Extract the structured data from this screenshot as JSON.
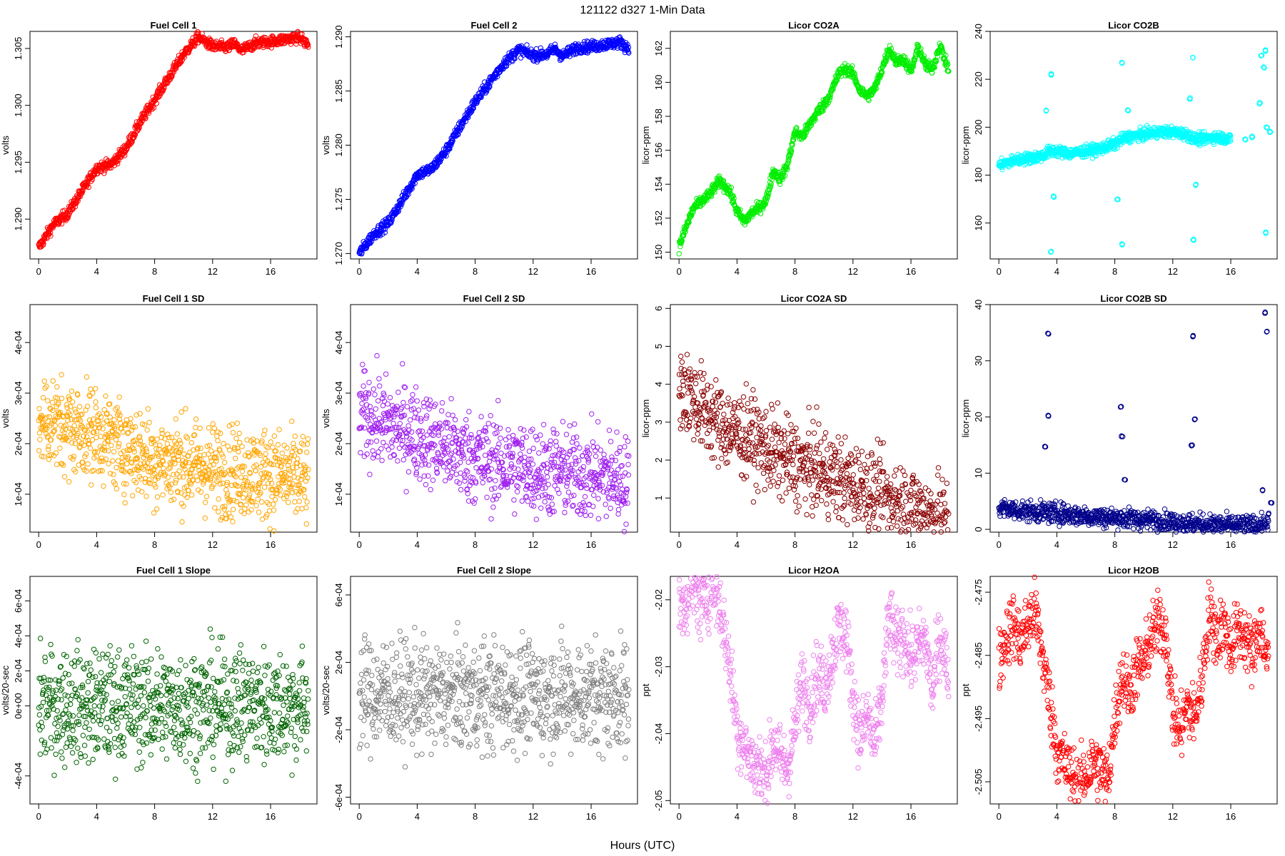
{
  "figure": {
    "title": "121122   d327   1-Min Data",
    "xlabel": "Hours (UTC)"
  },
  "chart_data": [
    {
      "type": "scatter",
      "title": "Fuel Cell 1",
      "ylabel": "volts",
      "color": "#ff0000",
      "xlim": [
        -0.6,
        19.2
      ],
      "ylim": [
        1.2865,
        1.3065
      ],
      "yticks": [
        "1.290",
        "1.295",
        "1.300",
        "1.305"
      ],
      "xticks": [
        0,
        4,
        8,
        12,
        16
      ],
      "x": [
        0,
        1,
        2,
        3,
        4,
        5,
        6,
        7,
        8,
        9,
        10,
        11,
        12,
        13,
        13.5,
        14,
        15,
        16,
        17,
        18,
        18.6
      ],
      "y": [
        1.2875,
        1.2895,
        1.2905,
        1.2925,
        1.2945,
        1.2948,
        1.2962,
        1.2985,
        1.3005,
        1.3025,
        1.3045,
        1.306,
        1.3052,
        1.3051,
        1.3054,
        1.3048,
        1.3055,
        1.3056,
        1.3058,
        1.306,
        1.3053
      ]
    },
    {
      "type": "scatter",
      "title": "Fuel Cell 2",
      "ylabel": "volts",
      "color": "#0000ff",
      "xlim": [
        -0.6,
        19.2
      ],
      "ylim": [
        1.2695,
        1.2905
      ],
      "yticks": [
        "1.270",
        "1.275",
        "1.280",
        "1.285",
        "1.290"
      ],
      "xticks": [
        0,
        4,
        8,
        12,
        16
      ],
      "x": [
        0,
        1,
        2,
        3,
        4,
        5,
        6,
        7,
        8,
        9,
        10,
        11,
        12,
        13,
        13.5,
        14,
        15,
        16,
        17,
        18,
        18.6
      ],
      "y": [
        1.27,
        1.2718,
        1.2728,
        1.275,
        1.2773,
        1.2778,
        1.2795,
        1.2818,
        1.284,
        1.2858,
        1.2876,
        1.2888,
        1.2883,
        1.2884,
        1.2889,
        1.2882,
        1.289,
        1.2891,
        1.2893,
        1.2895,
        1.2889
      ]
    },
    {
      "type": "scatter",
      "title": "Licor CO2A",
      "ylabel": "licor-ppm",
      "color": "#00ee00",
      "xlim": [
        -0.6,
        19.2
      ],
      "ylim": [
        149.6,
        163.0
      ],
      "yticks": [
        "150",
        "152",
        "154",
        "156",
        "158",
        "160",
        "162"
      ],
      "xticks": [
        0,
        4,
        8,
        12,
        16
      ],
      "x": [
        0,
        0.5,
        1,
        2,
        2.8,
        3.5,
        4,
        4.5,
        5,
        5.5,
        6,
        6.5,
        7,
        7.5,
        8,
        8.5,
        9,
        9.5,
        10,
        10.5,
        11,
        11.5,
        12,
        12.5,
        13,
        13.5,
        14,
        14.5,
        15,
        15.5,
        16,
        16.5,
        17,
        17.5,
        18,
        18.6
      ],
      "y": [
        150.3,
        151.5,
        152.6,
        153.3,
        154.2,
        153.6,
        152.4,
        151.8,
        152.3,
        152.6,
        153.0,
        154.8,
        154.3,
        155.2,
        157.1,
        156.8,
        157.5,
        158.2,
        158.7,
        159.4,
        160.5,
        160.8,
        160.5,
        159.5,
        159.2,
        159.6,
        160.8,
        162.0,
        161.2,
        161.4,
        160.6,
        162.1,
        161.0,
        160.8,
        162.2,
        160.7
      ]
    },
    {
      "type": "scatter",
      "title": "Licor CO2B",
      "ylabel": "licor-ppm",
      "color": "#00ffff",
      "xlim": [
        -0.6,
        19.2
      ],
      "ylim": [
        145,
        240
      ],
      "yticks": [
        "160",
        "180",
        "200",
        "220",
        "240"
      ],
      "xticks": [
        0,
        4,
        8,
        12,
        16
      ],
      "x": [
        0,
        1,
        2,
        3,
        3.5,
        4,
        5,
        6,
        7,
        8,
        8.5,
        9,
        10,
        11,
        12,
        13,
        13.5,
        14,
        15,
        16,
        17,
        17.5,
        18,
        18.3,
        18.5,
        3.6,
        3.6,
        8.5,
        8.5,
        13.4,
        13.4,
        18.4,
        18.4,
        3.3,
        8.2,
        13.2,
        18.1,
        3.8,
        8.9,
        13.6,
        18.7
      ],
      "y": [
        184,
        186,
        187,
        188,
        190,
        190,
        189,
        190,
        191,
        193,
        195,
        196,
        197,
        198,
        198,
        197,
        195,
        195,
        196,
        195,
        195,
        196,
        210,
        225,
        200,
        222,
        148,
        227,
        151,
        229,
        153,
        232,
        156,
        207,
        170,
        212,
        230,
        171,
        207,
        176,
        198
      ]
    },
    {
      "type": "scatter",
      "title": "Fuel Cell 1 SD",
      "ylabel": "volts",
      "color": "#ffa500",
      "xlim": [
        -0.6,
        19.2
      ],
      "ylim": [
        2.5e-05,
        0.000475
      ],
      "yticks": [
        "1e-04",
        "2e-04",
        "3e-04",
        "4e-04"
      ],
      "ytickvals": [
        0.0001,
        0.0002,
        0.0003,
        0.0004
      ],
      "xticks": [
        0,
        4,
        8,
        12,
        16
      ],
      "x": [
        0,
        1,
        2,
        3,
        4,
        5,
        6,
        7,
        8,
        9,
        10,
        11,
        12,
        13,
        14,
        15,
        16,
        17,
        18,
        18.6
      ],
      "y": [
        0.00025,
        0.00024,
        0.00023,
        0.000225,
        0.00022,
        0.000205,
        0.000195,
        0.00018,
        0.00017,
        0.000165,
        0.00016,
        0.000155,
        0.00015,
        0.000145,
        0.000145,
        0.00014,
        0.00014,
        0.000135,
        0.00013,
        0.00012
      ],
      "spread": 4.5e-05
    },
    {
      "type": "scatter",
      "title": "Fuel Cell 2 SD",
      "ylabel": "volts",
      "color": "#a020f0",
      "xlim": [
        -0.6,
        19.2
      ],
      "ylim": [
        2.5e-05,
        0.000475
      ],
      "yticks": [
        "1e-04",
        "2e-04",
        "3e-04",
        "4e-04"
      ],
      "ytickvals": [
        0.0001,
        0.0002,
        0.0003,
        0.0004
      ],
      "xticks": [
        0,
        4,
        8,
        12,
        16
      ],
      "x": [
        0,
        1,
        2,
        3,
        4,
        5,
        6,
        7,
        8,
        9,
        10,
        11,
        12,
        13,
        14,
        15,
        16,
        17,
        18,
        18.6
      ],
      "y": [
        0.00026,
        0.00025,
        0.000235,
        0.00023,
        0.00022,
        0.000205,
        0.000195,
        0.00018,
        0.00017,
        0.000165,
        0.00016,
        0.000155,
        0.00015,
        0.000145,
        0.000145,
        0.00014,
        0.00014,
        0.000135,
        0.00013,
        0.00012
      ],
      "spread": 4.5e-05
    },
    {
      "type": "scatter",
      "title": "Licor CO2A SD",
      "ylabel": "licor-ppm",
      "color": "#8b0000",
      "xlim": [
        -0.6,
        19.2
      ],
      "ylim": [
        0.1,
        6.1
      ],
      "yticks": [
        "1",
        "2",
        "3",
        "4",
        "5",
        "6"
      ],
      "ytickvals": [
        1,
        2,
        3,
        4,
        5,
        6
      ],
      "xticks": [
        0,
        4,
        8,
        12,
        16
      ],
      "x": [
        0,
        1,
        2,
        3,
        4,
        5,
        6,
        7,
        8,
        9,
        10,
        11,
        12,
        13,
        14,
        15,
        16,
        17,
        18,
        18.6
      ],
      "y": [
        4.0,
        3.6,
        3.2,
        2.9,
        2.7,
        2.6,
        2.3,
        2.1,
        1.9,
        1.8,
        1.7,
        1.5,
        1.35,
        1.2,
        1.0,
        0.9,
        0.75,
        0.6,
        0.5,
        0.4
      ],
      "spread": 0.55
    },
    {
      "type": "scatter",
      "title": "Licor CO2B SD",
      "ylabel": "licor-ppm",
      "color": "#00008b",
      "xlim": [
        -0.6,
        19.2
      ],
      "ylim": [
        -0.5,
        40
      ],
      "yticks": [
        "0",
        "10",
        "20",
        "30",
        "40"
      ],
      "ytickvals": [
        0,
        10,
        20,
        30,
        40
      ],
      "xticks": [
        0,
        4,
        8,
        12,
        16
      ],
      "x": [
        0,
        1,
        2,
        3,
        4,
        5,
        6,
        7,
        8,
        9,
        10,
        11,
        12,
        13,
        14,
        15,
        16,
        17,
        18,
        18.6,
        3.2,
        3.4,
        3.4,
        8.4,
        8.5,
        8.7,
        13.3,
        13.4,
        13.5,
        18.2,
        18.4,
        18.5,
        18.6,
        18.8
      ],
      "y": [
        3.8,
        3.5,
        3.2,
        3.0,
        2.9,
        2.6,
        2.4,
        2.2,
        2.0,
        1.9,
        1.7,
        1.5,
        1.3,
        1.1,
        0.9,
        0.8,
        0.7,
        0.6,
        0.8,
        0.5,
        14.8,
        20.2,
        34.8,
        21.8,
        16.6,
        8.8,
        15.0,
        34.4,
        19.6,
        7.0,
        38.6,
        35.2,
        2.8,
        4.8
      ],
      "spread": 0.9
    },
    {
      "type": "scatter",
      "title": "Fuel Cell 1 Slope",
      "ylabel": "volts/20-sec",
      "color": "#006400",
      "xlim": [
        -0.6,
        19.2
      ],
      "ylim": [
        -0.00056,
        0.00074
      ],
      "yticks": [
        "-4e-04",
        "0e+00",
        "2e-04",
        "4e-04",
        "6e-04"
      ],
      "ytickvals": [
        -0.0004,
        0,
        0.0002,
        0.0004,
        0.0006
      ],
      "xticks": [
        0,
        4,
        8,
        12,
        16
      ],
      "x": [
        0,
        1,
        2,
        3,
        4,
        5,
        6,
        7,
        8,
        9,
        10,
        11,
        12,
        13,
        14,
        15,
        16,
        17,
        18,
        18.6
      ],
      "y": [
        1e-05,
        0,
        1e-05,
        0,
        0,
        0,
        1e-05,
        0,
        0,
        0,
        1e-05,
        0,
        0,
        0,
        1e-05,
        0,
        0,
        0,
        0,
        0
      ],
      "spread": 0.00016
    },
    {
      "type": "scatter",
      "title": "Fuel Cell 2 Slope",
      "ylabel": "volts/20-sec",
      "color": "#808080",
      "xlim": [
        -0.6,
        19.2
      ],
      "ylim": [
        -0.00064,
        0.00071
      ],
      "yticks": [
        "-6e-04",
        "-2e-04",
        "2e-04",
        "6e-04"
      ],
      "ytickvals": [
        -0.0006,
        -0.0002,
        0.0002,
        0.0006
      ],
      "xticks": [
        0,
        4,
        8,
        12,
        16
      ],
      "x": [
        0,
        1,
        2,
        3,
        4,
        5,
        6,
        7,
        8,
        9,
        10,
        11,
        12,
        13,
        14,
        15,
        16,
        17,
        18,
        18.6
      ],
      "y": [
        1e-05,
        0,
        1e-05,
        0,
        0,
        0,
        1e-05,
        0,
        0,
        0,
        1e-05,
        0,
        0,
        0,
        1e-05,
        0,
        0,
        0,
        0,
        0
      ],
      "spread": 0.00016
    },
    {
      "type": "scatter",
      "title": "Licor H2OA",
      "ylabel": "ppt",
      "color": "#ee82ee",
      "xlim": [
        -0.6,
        19.2
      ],
      "ylim": [
        -2.0505,
        -2.0165
      ],
      "yticks": [
        "-2.05",
        "-2.04",
        "-2.03",
        "-2.02"
      ],
      "ytickvals": [
        -2.05,
        -2.04,
        -2.03,
        -2.02
      ],
      "xticks": [
        0,
        4,
        8,
        12,
        16
      ],
      "x": [
        0,
        0.5,
        1,
        1.5,
        2,
        2.5,
        3,
        3.5,
        4,
        4.5,
        5,
        5.5,
        6,
        6.5,
        7,
        7.5,
        8,
        8.5,
        9,
        9.5,
        10,
        10.5,
        11,
        11.5,
        12,
        12.5,
        13,
        13.5,
        14,
        14.5,
        15,
        15.5,
        16,
        16.5,
        17,
        17.5,
        18,
        18.6
      ],
      "y": [
        -2.022,
        -2.02,
        -2.018,
        -2.021,
        -2.019,
        -2.018,
        -2.023,
        -2.03,
        -2.039,
        -2.042,
        -2.044,
        -2.045,
        -2.047,
        -2.041,
        -2.044,
        -2.045,
        -2.039,
        -2.032,
        -2.036,
        -2.031,
        -2.033,
        -2.029,
        -2.024,
        -2.025,
        -2.034,
        -2.041,
        -2.037,
        -2.042,
        -2.035,
        -2.022,
        -2.027,
        -2.025,
        -2.029,
        -2.027,
        -2.026,
        -2.034,
        -2.025,
        -2.031
      ],
      "spread": 0.0025
    },
    {
      "type": "scatter",
      "title": "Licor H2OB",
      "ylabel": "ppt",
      "color": "#ff0000",
      "xlim": [
        -0.6,
        19.2
      ],
      "ylim": [
        -2.5085,
        -2.4725
      ],
      "yticks": [
        "-2.505",
        "-2.495",
        "-2.485",
        "-2.475"
      ],
      "ytickvals": [
        -2.505,
        -2.495,
        -2.485,
        -2.475
      ],
      "xticks": [
        0,
        4,
        8,
        12,
        16
      ],
      "x": [
        0,
        0.5,
        1,
        1.5,
        2,
        2.5,
        3,
        3.5,
        4,
        4.5,
        5,
        5.5,
        6,
        6.5,
        7,
        7.5,
        8,
        8.5,
        9,
        9.5,
        10,
        10.5,
        11,
        11.5,
        12,
        12.5,
        13,
        13.5,
        14,
        14.5,
        15,
        15.5,
        16,
        16.5,
        17,
        17.5,
        18,
        18.6
      ],
      "y": [
        -2.486,
        -2.482,
        -2.48,
        -2.483,
        -2.48,
        -2.478,
        -2.485,
        -2.492,
        -2.5,
        -2.502,
        -2.504,
        -2.506,
        -2.504,
        -2.502,
        -2.503,
        -2.505,
        -2.495,
        -2.488,
        -2.491,
        -2.487,
        -2.486,
        -2.482,
        -2.48,
        -2.481,
        -2.494,
        -2.497,
        -2.493,
        -2.495,
        -2.489,
        -2.478,
        -2.482,
        -2.48,
        -2.484,
        -2.481,
        -2.482,
        -2.485,
        -2.48,
        -2.487
      ],
      "spread": 0.0025
    }
  ]
}
